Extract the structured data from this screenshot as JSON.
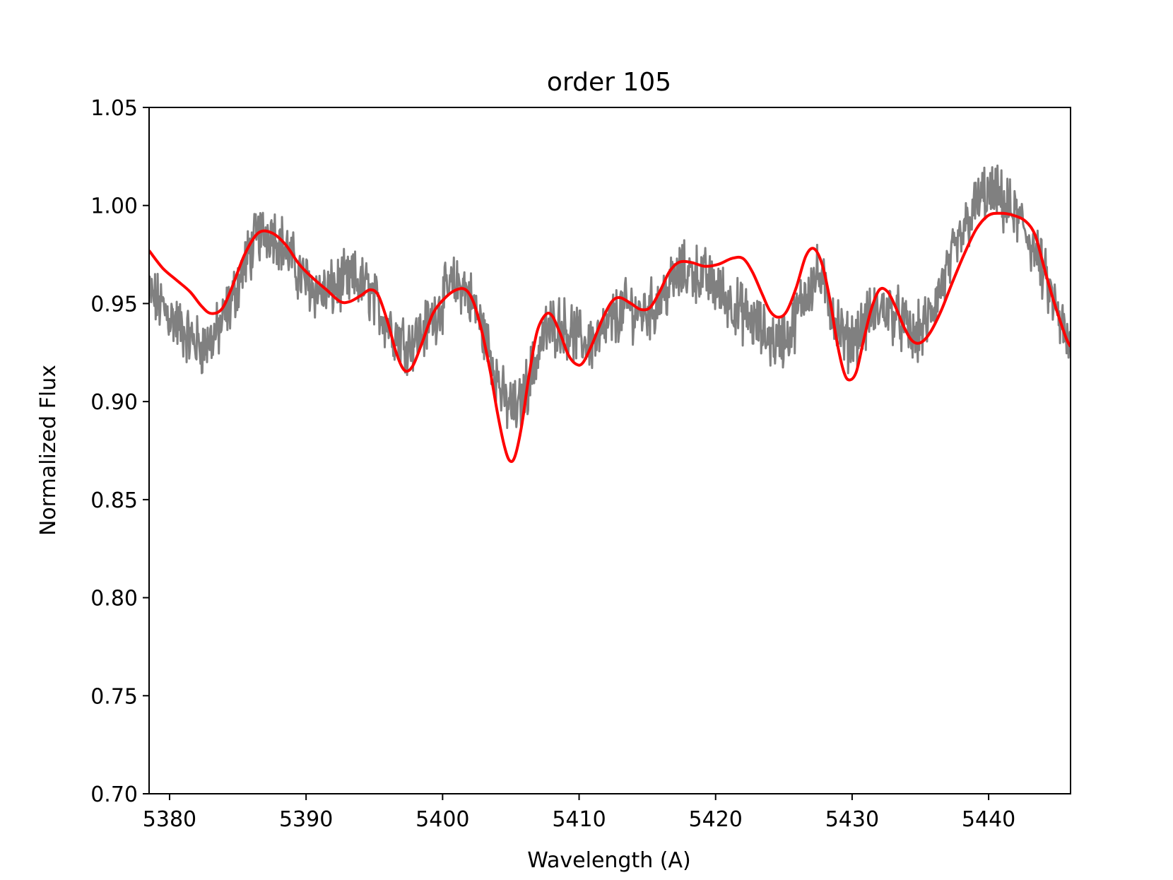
{
  "chart_data": {
    "type": "line",
    "title": "order 105",
    "xlabel": "Wavelength (A)",
    "ylabel": "Normalized Flux",
    "xlim": [
      5378.5,
      5446
    ],
    "ylim": [
      0.7,
      1.05
    ],
    "xticks": [
      5380,
      5390,
      5400,
      5410,
      5420,
      5430,
      5440
    ],
    "xtick_labels": [
      "5380",
      "5390",
      "5400",
      "5410",
      "5420",
      "5430",
      "5440"
    ],
    "yticks": [
      0.7,
      0.75,
      0.8,
      0.85,
      0.9,
      0.95,
      1.0,
      1.05
    ],
    "ytick_labels": [
      "0.70",
      "0.75",
      "0.80",
      "0.85",
      "0.90",
      "0.95",
      "1.00",
      "1.05"
    ],
    "grid": false,
    "legend": "none",
    "series": [
      {
        "role": "observed",
        "color": "#808080",
        "noise": 0.012,
        "x": [
          5378.5,
          5379.5,
          5380.5,
          5381.5,
          5382.5,
          5383.5,
          5384.5,
          5385.5,
          5386.5,
          5387.5,
          5388.5,
          5389.5,
          5390.5,
          5391.5,
          5392.5,
          5393.5,
          5394.5,
          5395.5,
          5396.5,
          5397.5,
          5398.5,
          5399.5,
          5400.5,
          5401.5,
          5402.5,
          5403.5,
          5404.5,
          5405.5,
          5406.5,
          5407.5,
          5408.5,
          5409.5,
          5410.5,
          5411.5,
          5412.5,
          5413.5,
          5414.5,
          5415.5,
          5416.5,
          5417.5,
          5418.5,
          5419.5,
          5420.5,
          5421.5,
          5422.5,
          5423.5,
          5424.5,
          5425.5,
          5426.5,
          5427.5,
          5428.5,
          5429.5,
          5430.5,
          5431.5,
          5432.5,
          5433.5,
          5434.5,
          5435.5,
          5436.5,
          5437.5,
          5438.5,
          5439.5,
          5440.5,
          5441.5,
          5442.5,
          5443.5,
          5444.5,
          5445.5,
          5446.0
        ],
        "y": [
          0.955,
          0.948,
          0.94,
          0.932,
          0.928,
          0.935,
          0.95,
          0.97,
          0.985,
          0.988,
          0.978,
          0.965,
          0.958,
          0.955,
          0.96,
          0.962,
          0.958,
          0.945,
          0.935,
          0.93,
          0.935,
          0.945,
          0.958,
          0.96,
          0.945,
          0.925,
          0.9,
          0.895,
          0.915,
          0.935,
          0.94,
          0.935,
          0.93,
          0.932,
          0.942,
          0.948,
          0.945,
          0.948,
          0.958,
          0.966,
          0.966,
          0.962,
          0.955,
          0.948,
          0.942,
          0.935,
          0.93,
          0.935,
          0.955,
          0.965,
          0.948,
          0.93,
          0.935,
          0.945,
          0.948,
          0.942,
          0.932,
          0.94,
          0.958,
          0.975,
          0.992,
          1.005,
          1.005,
          0.998,
          0.99,
          0.975,
          0.955,
          0.935,
          0.925
        ]
      },
      {
        "role": "model",
        "color": "#ff0000",
        "x": [
          5378.5,
          5379.5,
          5380.5,
          5381.5,
          5382.3,
          5383.0,
          5383.8,
          5384.5,
          5385.5,
          5386.5,
          5387.5,
          5388.5,
          5389.5,
          5390.5,
          5391.5,
          5392.5,
          5393.2,
          5394.0,
          5394.7,
          5395.3,
          5396.0,
          5396.6,
          5397.2,
          5397.8,
          5398.5,
          5399.3,
          5400.2,
          5401.0,
          5401.7,
          5402.3,
          5402.9,
          5403.5,
          5404.0,
          5404.5,
          5404.9,
          5405.3,
          5405.8,
          5406.3,
          5406.9,
          5407.5,
          5408.0,
          5408.6,
          5409.2,
          5409.8,
          5410.3,
          5411.0,
          5411.7,
          5412.4,
          5413.0,
          5413.8,
          5414.5,
          5415.2,
          5415.9,
          5416.6,
          5417.3,
          5418.2,
          5419.2,
          5420.2,
          5421.2,
          5422.0,
          5422.7,
          5423.4,
          5424.0,
          5424.6,
          5425.2,
          5425.9,
          5426.6,
          5427.2,
          5427.8,
          5428.4,
          5428.9,
          5429.4,
          5429.8,
          5430.3,
          5430.8,
          5431.4,
          5432.0,
          5432.6,
          5433.2,
          5433.8,
          5434.4,
          5435.0,
          5435.7,
          5436.5,
          5437.3,
          5438.2,
          5439.1,
          5440.0,
          5440.9,
          5441.8,
          5442.7,
          5443.4,
          5444.0,
          5444.6,
          5445.2,
          5445.7,
          5446.0
        ],
        "y": [
          0.977,
          0.968,
          0.962,
          0.956,
          0.949,
          0.945,
          0.947,
          0.957,
          0.975,
          0.986,
          0.986,
          0.98,
          0.97,
          0.963,
          0.957,
          0.951,
          0.951,
          0.954,
          0.957,
          0.954,
          0.94,
          0.925,
          0.916,
          0.918,
          0.93,
          0.945,
          0.953,
          0.957,
          0.957,
          0.95,
          0.935,
          0.915,
          0.895,
          0.878,
          0.87,
          0.872,
          0.888,
          0.912,
          0.935,
          0.944,
          0.944,
          0.935,
          0.924,
          0.919,
          0.92,
          0.93,
          0.942,
          0.951,
          0.953,
          0.95,
          0.947,
          0.948,
          0.956,
          0.966,
          0.971,
          0.971,
          0.969,
          0.97,
          0.973,
          0.973,
          0.966,
          0.955,
          0.946,
          0.943,
          0.946,
          0.958,
          0.974,
          0.978,
          0.97,
          0.951,
          0.93,
          0.915,
          0.911,
          0.915,
          0.93,
          0.947,
          0.957,
          0.956,
          0.948,
          0.938,
          0.931,
          0.93,
          0.935,
          0.946,
          0.96,
          0.975,
          0.988,
          0.995,
          0.996,
          0.995,
          0.992,
          0.985,
          0.97,
          0.955,
          0.942,
          0.932,
          0.928
        ]
      }
    ]
  }
}
